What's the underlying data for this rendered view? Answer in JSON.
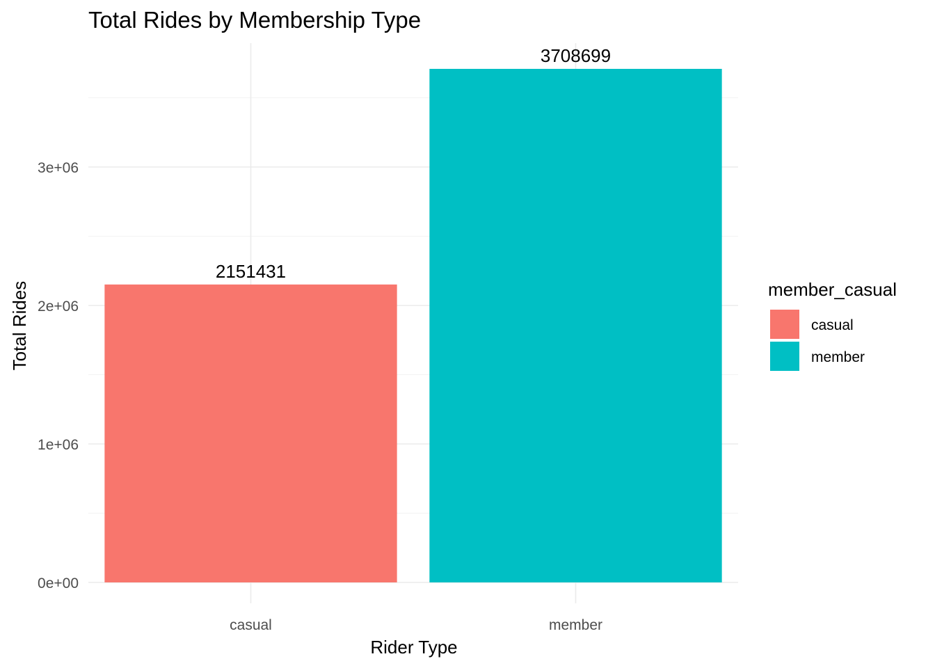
{
  "chart_data": {
    "type": "bar",
    "title": "Total Rides by Membership Type",
    "xlabel": "Rider Type",
    "ylabel": "Total Rides",
    "categories": [
      "casual",
      "member"
    ],
    "values": [
      2151431,
      3708699
    ],
    "data_labels": [
      "2151431",
      "3708699"
    ],
    "colors": [
      "#F8766D",
      "#00BFC4"
    ],
    "ylim": [
      0,
      3900000
    ],
    "yticks": [
      0,
      1000000,
      2000000,
      3000000
    ],
    "ytick_labels": [
      "0e+00",
      "1e+06",
      "2e+06",
      "3e+06"
    ],
    "grid": true,
    "legend": {
      "title": "member_casual",
      "placement": "right",
      "entries": [
        {
          "label": "casual",
          "color": "#F8766D"
        },
        {
          "label": "member",
          "color": "#00BFC4"
        }
      ]
    }
  }
}
